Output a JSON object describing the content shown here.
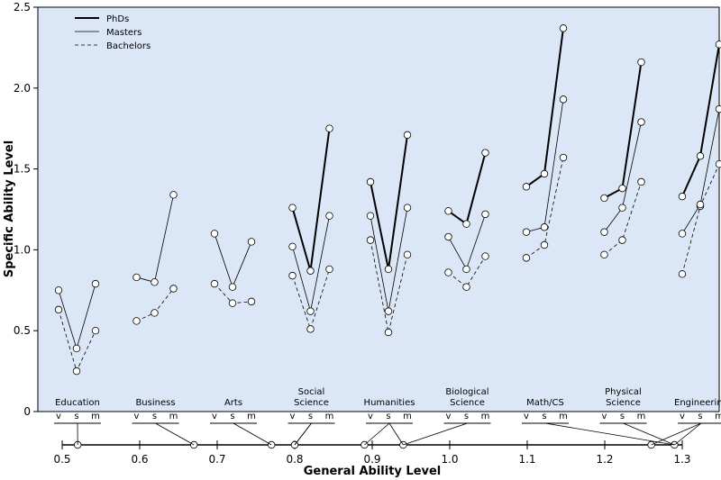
{
  "chart_data": {
    "type": "line",
    "ylabel": "Specific Ability Level",
    "xlabel": "General Ability Level",
    "ylim": [
      0,
      2.5
    ],
    "xlim": [
      0.5,
      1.3
    ],
    "yticks": [
      "0",
      "0.5",
      "1.0",
      "1.5",
      "2.0",
      "2.5"
    ],
    "xticks": [
      "0.5",
      "0.6",
      "0.7",
      "0.8",
      "0.9",
      "1.0",
      "1.1",
      "1.2",
      "1.3"
    ],
    "subtests": [
      "v",
      "s",
      "m"
    ],
    "legend": {
      "position": "top-left",
      "entries": [
        {
          "name": "PhDs",
          "style": "thick"
        },
        {
          "name": "Masters",
          "style": "thin"
        },
        {
          "name": "Bachelors",
          "style": "dashed"
        }
      ]
    },
    "colors": {
      "background": "#dbe7f7",
      "line": "#000000"
    },
    "series": [
      {
        "name": "Education",
        "label": [
          "Education"
        ],
        "general": [
          0.52
        ],
        "phd": null,
        "masters": [
          0.75,
          0.39,
          0.79
        ],
        "bachelors": [
          0.63,
          0.25,
          0.5
        ]
      },
      {
        "name": "Business",
        "label": [
          "Business"
        ],
        "general": [
          0.67
        ],
        "phd": null,
        "masters": [
          0.83,
          0.8,
          1.34
        ],
        "bachelors": [
          0.56,
          0.61,
          0.76
        ]
      },
      {
        "name": "Arts",
        "label": [
          "Arts"
        ],
        "general": [
          0.77
        ],
        "phd": null,
        "masters": [
          1.1,
          0.77,
          1.05
        ],
        "bachelors": [
          0.79,
          0.67,
          0.68
        ]
      },
      {
        "name": "Social Science",
        "label": [
          "Social",
          "Science"
        ],
        "general": [
          0.8,
          0.8
        ],
        "phd": [
          1.26,
          0.87,
          1.75
        ],
        "masters": [
          1.02,
          0.62,
          1.21
        ],
        "bachelors": [
          0.84,
          0.51,
          0.88
        ]
      },
      {
        "name": "Humanities",
        "label": [
          "Humanities"
        ],
        "general": [
          0.89,
          0.94
        ],
        "phd": [
          1.42,
          0.88,
          1.71
        ],
        "masters": [
          1.21,
          0.62,
          1.26
        ],
        "bachelors": [
          1.06,
          0.49,
          0.97
        ]
      },
      {
        "name": "Biological Science",
        "label": [
          "Biological",
          "Science"
        ],
        "general": [
          0.94
        ],
        "phd": [
          1.24,
          1.16,
          1.6
        ],
        "masters": [
          1.08,
          0.88,
          1.22
        ],
        "bachelors": [
          0.86,
          0.77,
          0.96
        ]
      },
      {
        "name": "Math/CS",
        "label": [
          "Math/CS"
        ],
        "general": [
          1.29
        ],
        "phd": [
          1.39,
          1.47,
          2.37
        ],
        "masters": [
          1.11,
          1.14,
          1.93
        ],
        "bachelors": [
          0.95,
          1.03,
          1.57
        ]
      },
      {
        "name": "Physical Science",
        "label": [
          "Physical",
          "Science"
        ],
        "general": [
          1.29
        ],
        "phd": [
          1.32,
          1.38,
          2.16
        ],
        "masters": [
          1.11,
          1.26,
          1.79
        ],
        "bachelors": [
          0.97,
          1.06,
          1.42
        ]
      },
      {
        "name": "Engineering",
        "label": [
          "Engineering"
        ],
        "general": [
          1.26,
          1.29
        ],
        "phd": [
          1.33,
          1.58,
          2.27
        ],
        "masters": [
          1.1,
          1.28,
          1.87
        ],
        "bachelors": [
          0.85,
          1.27,
          1.53
        ]
      }
    ]
  }
}
